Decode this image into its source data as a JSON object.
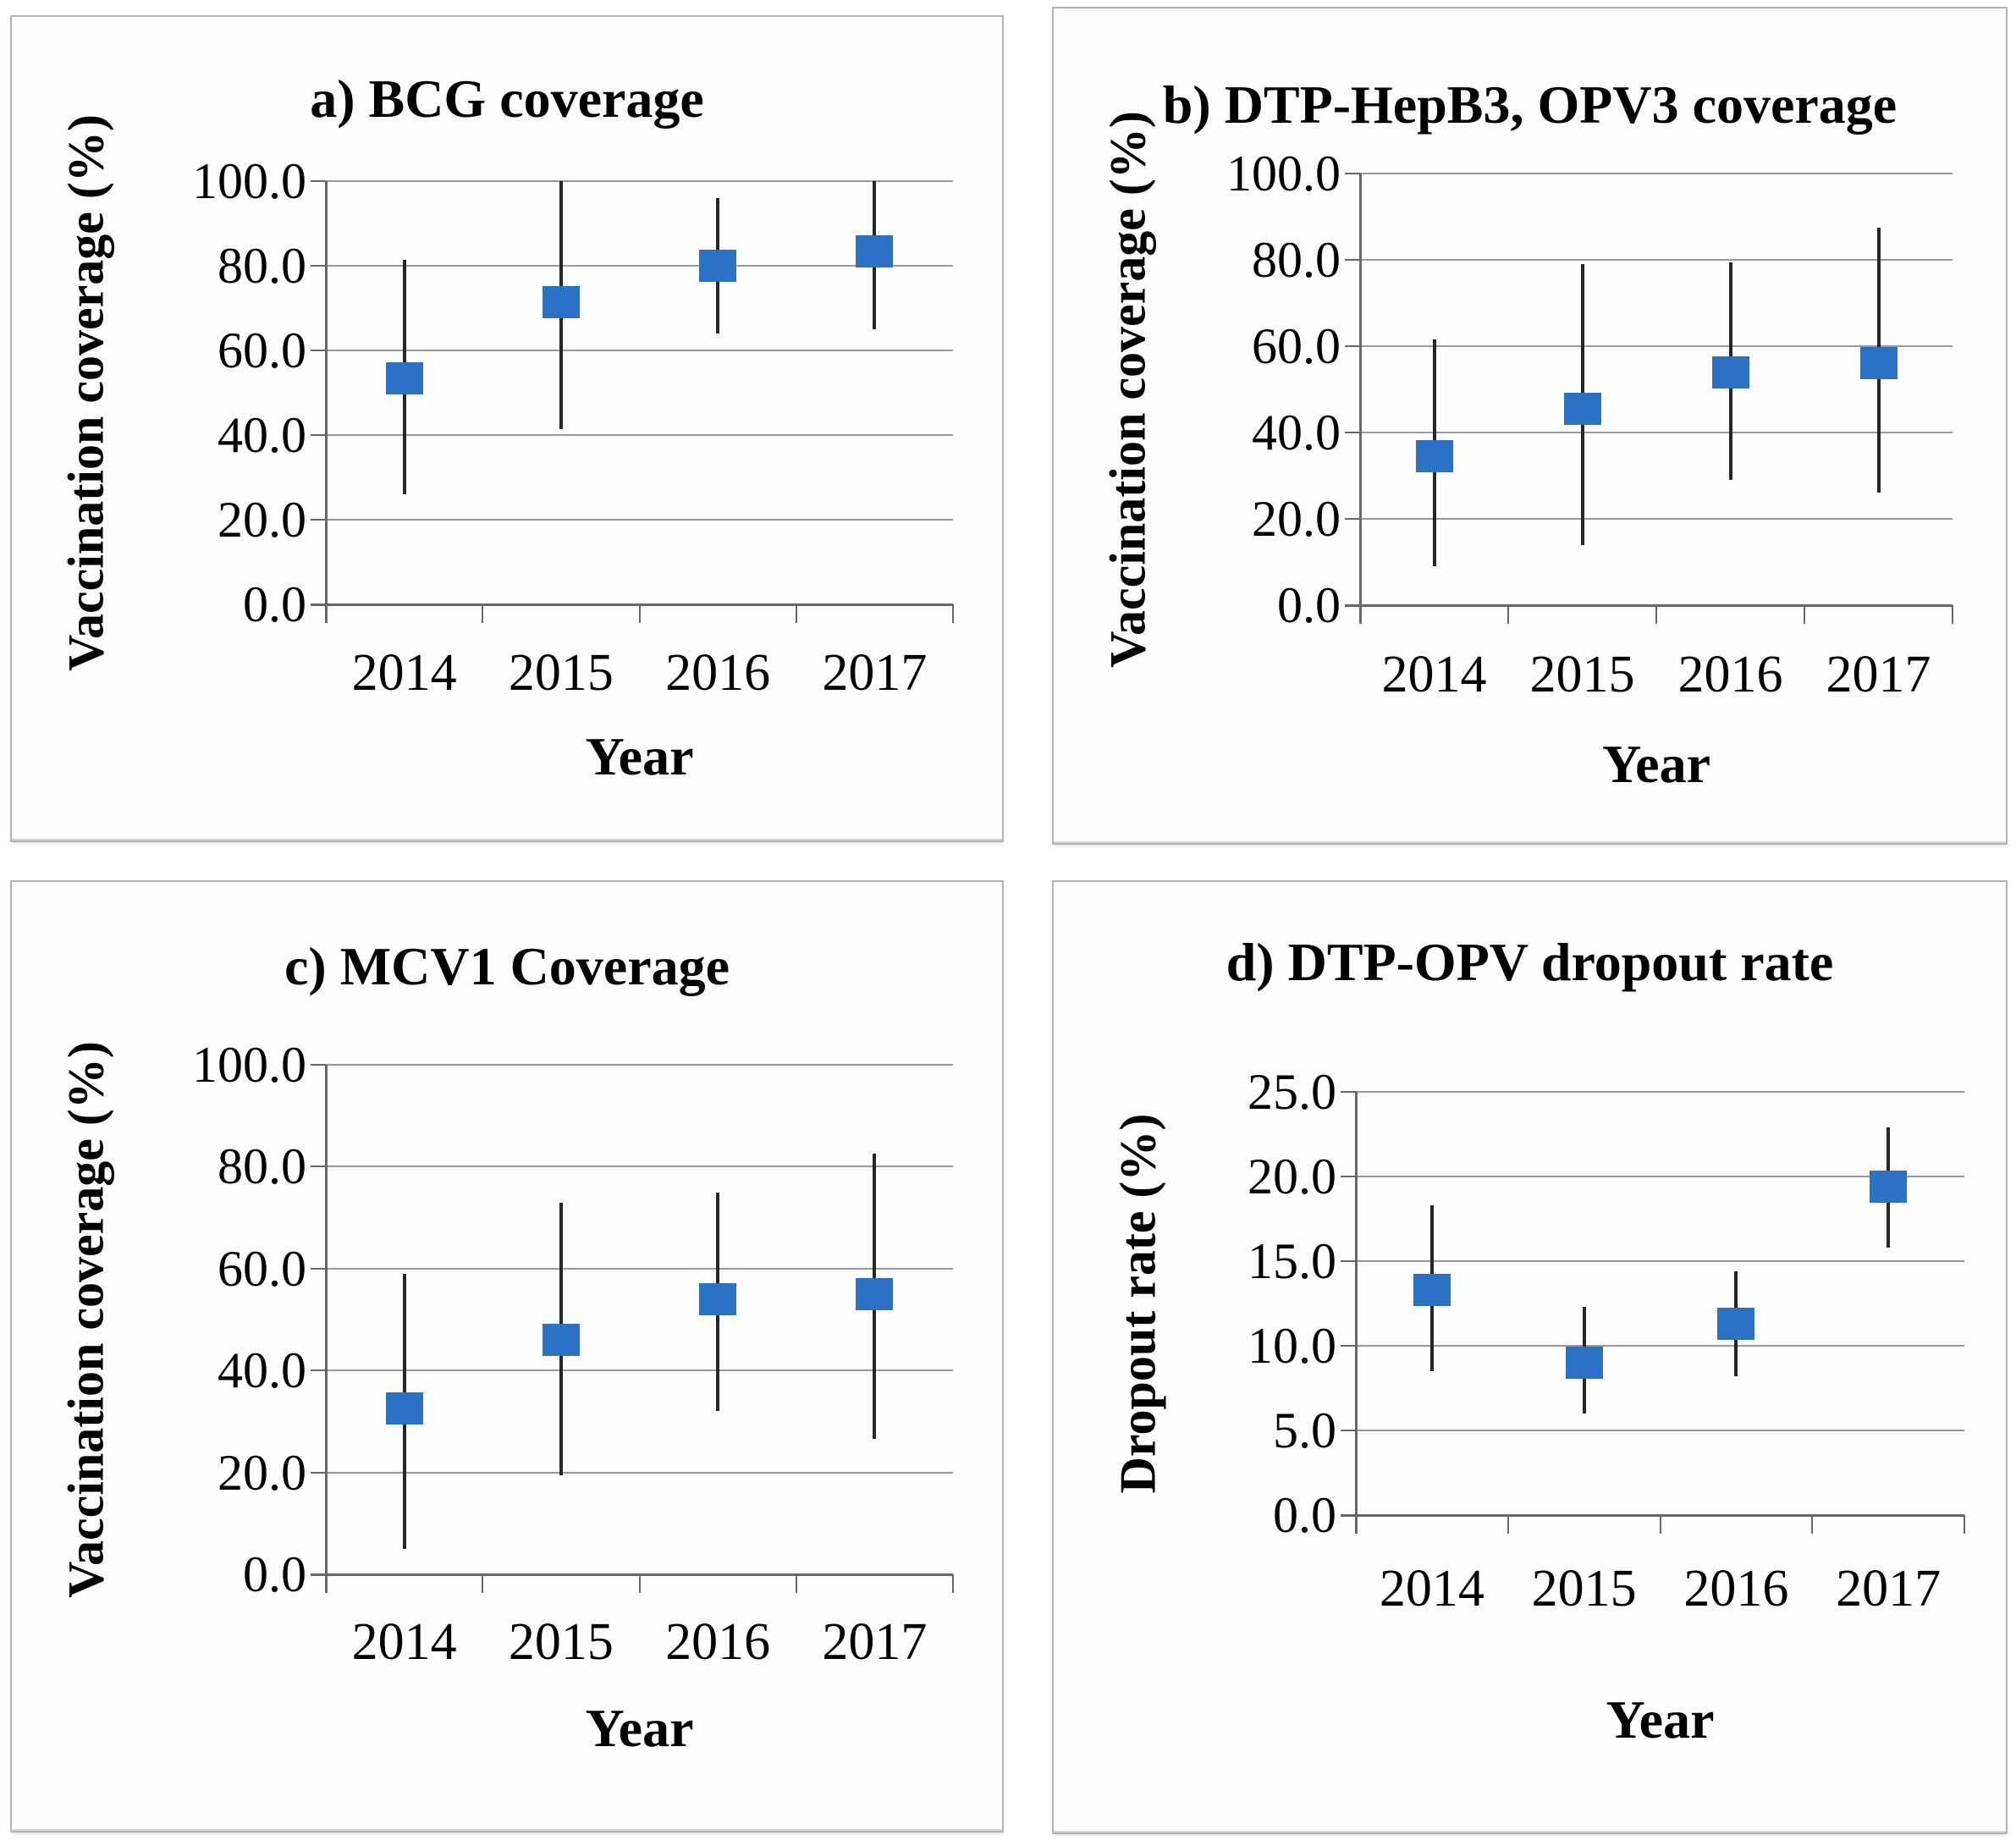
{
  "styles": {
    "marker_color": "#2b72c6",
    "gridline_color": "#999999",
    "axis_color": "#666666",
    "errorbar_color": "#262626",
    "panel_border_color": "#b3b3b3",
    "background": "#ffffff",
    "text_color": "#000000"
  },
  "chart_data": [
    {
      "panel_label": "a",
      "type": "scatter",
      "title": "a) BCG coverage",
      "xlabel": "Year",
      "ylabel": "Vaccination coverage (%)",
      "ylim": [
        0,
        100
      ],
      "ytick_step": 20,
      "ytick_labels": [
        "100.0",
        "80.0",
        "60.0",
        "40.0",
        "20.0",
        "0.0"
      ],
      "categories": [
        "2014",
        "2015",
        "2016",
        "2017"
      ],
      "grid": true,
      "legend": false,
      "marker": "square",
      "series": [
        {
          "name": "BCG coverage",
          "values": [
            53.5,
            71.5,
            80.0,
            83.5
          ],
          "ci_low": [
            26.0,
            41.5,
            64.0,
            65.0
          ],
          "ci_high": [
            81.5,
            100.0,
            96.0,
            100.0
          ]
        }
      ]
    },
    {
      "panel_label": "b",
      "type": "scatter",
      "title": "b) DTP-HepB3, OPV3 coverage",
      "xlabel": "Year",
      "ylabel": "Vaccination coverage (%)",
      "ylim": [
        0,
        100
      ],
      "ytick_step": 20,
      "ytick_labels": [
        "100.0",
        "80.0",
        "60.0",
        "40.0",
        "20.0",
        "0.0"
      ],
      "categories": [
        "2014",
        "2015",
        "2016",
        "2017"
      ],
      "grid": true,
      "legend": false,
      "marker": "square",
      "series": [
        {
          "name": "DTP-HepB3, OPV3 coverage",
          "values": [
            34.5,
            45.5,
            54.0,
            56.0
          ],
          "ci_low": [
            9.0,
            14.0,
            29.0,
            26.0
          ],
          "ci_high": [
            61.5,
            79.0,
            79.5,
            87.5
          ]
        }
      ]
    },
    {
      "panel_label": "c",
      "type": "scatter",
      "title": "c) MCV1 Coverage",
      "xlabel": "Year",
      "ylabel": "Vaccination coverage (%)",
      "ylim": [
        0,
        100
      ],
      "ytick_step": 20,
      "ytick_labels": [
        "100.0",
        "80.0",
        "60.0",
        "40.0",
        "20.0",
        "0.0"
      ],
      "categories": [
        "2014",
        "2015",
        "2016",
        "2017"
      ],
      "grid": true,
      "legend": false,
      "marker": "square",
      "series": [
        {
          "name": "MCV1 coverage",
          "values": [
            32.5,
            46.0,
            54.0,
            55.0
          ],
          "ci_low": [
            5.0,
            19.5,
            32.0,
            26.5
          ],
          "ci_high": [
            59.0,
            73.0,
            75.0,
            82.5
          ]
        }
      ]
    },
    {
      "panel_label": "d",
      "type": "scatter",
      "title": "d) DTP-OPV dropout rate",
      "xlabel": "Year",
      "ylabel": "Dropout rate (%)",
      "ylim": [
        0,
        25
      ],
      "ytick_step": 5,
      "ytick_labels": [
        "25.0",
        "20.0",
        "15.0",
        "10.0",
        "5.0",
        "0.0"
      ],
      "categories": [
        "2014",
        "2015",
        "2016",
        "2017"
      ],
      "grid": true,
      "legend": false,
      "marker": "square",
      "series": [
        {
          "name": "DTP-OPV dropout rate",
          "values": [
            13.3,
            9.0,
            11.3,
            19.4
          ],
          "ci_low": [
            8.5,
            6.0,
            8.2,
            15.8
          ],
          "ci_high": [
            18.3,
            12.3,
            14.4,
            22.9
          ]
        }
      ]
    }
  ]
}
